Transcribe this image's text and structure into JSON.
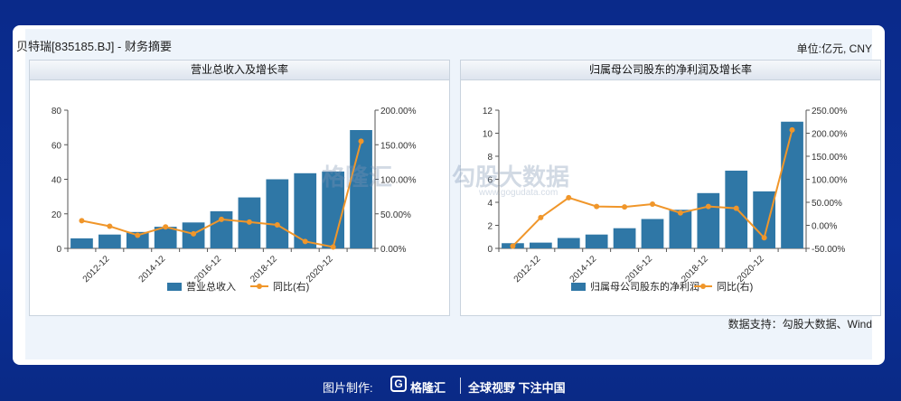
{
  "header": {
    "company": "贝特瑞[835185.BJ] - 财务摘要",
    "unit": "单位:亿元, CNY",
    "source": "数据支持：勾股大数据、Wind"
  },
  "watermark": {
    "left_text": "格隆汇",
    "right_text": "勾股大数据",
    "url": "www.gogudata.com"
  },
  "footer": {
    "label": "图片制作:",
    "logo_char": "G",
    "brand": "格隆汇",
    "slogan": "全球视野 下注中国"
  },
  "colors": {
    "bar": "#2f77a6",
    "line": "#f0962a",
    "background": "#0b2f98"
  },
  "chart_data": [
    {
      "type": "bar",
      "title": "营业总收入及增长率",
      "x_tick_labels": [
        "2012-12",
        "2014-12",
        "2016-12",
        "2018-12",
        "2020-12"
      ],
      "x_tick_positions": [
        1,
        3,
        5,
        7,
        9
      ],
      "series": [
        {
          "name": "营业总收入",
          "type": "bar",
          "axis": "left",
          "values": [
            5.8,
            8.0,
            9.5,
            12.5,
            15.0,
            21.5,
            29.5,
            40.0,
            43.5,
            44.5,
            68.5
          ]
        },
        {
          "name": "同比(右)",
          "type": "line",
          "axis": "right",
          "values": [
            40,
            32,
            19,
            31,
            21,
            42,
            38,
            34,
            10,
            2,
            155
          ]
        }
      ],
      "left_axis": {
        "ticks": [
          0,
          20,
          40,
          60,
          80
        ],
        "range": [
          0,
          80
        ]
      },
      "right_axis": {
        "ticks": [
          "0.00%",
          "50.00%",
          "100.00%",
          "150.00%",
          "200.00%"
        ],
        "range": [
          0,
          200
        ]
      },
      "legend": [
        "营业总收入",
        "同比(右)"
      ]
    },
    {
      "type": "bar",
      "title": "归属母公司股东的净利润及增长率",
      "x_tick_labels": [
        "2012-12",
        "2014-12",
        "2016-12",
        "2018-12",
        "2020-12"
      ],
      "x_tick_positions": [
        1,
        3,
        5,
        7,
        9
      ],
      "series": [
        {
          "name": "归属母公司股东的净利润",
          "type": "bar",
          "axis": "left",
          "values": [
            0.45,
            0.5,
            0.9,
            1.2,
            1.75,
            2.55,
            3.35,
            4.8,
            6.75,
            4.95,
            11.0
          ]
        },
        {
          "name": "同比(右)",
          "type": "line",
          "axis": "right",
          "values": [
            -45,
            17,
            60,
            41,
            40,
            46,
            27,
            41,
            37,
            -27,
            207
          ]
        }
      ],
      "left_axis": {
        "ticks": [
          0,
          2,
          4,
          6,
          8,
          10,
          12
        ],
        "range": [
          0,
          12
        ]
      },
      "right_axis": {
        "ticks": [
          "-50.00%",
          "0.00%",
          "50.00%",
          "100.00%",
          "150.00%",
          "200.00%",
          "250.00%"
        ],
        "range": [
          -50,
          250
        ]
      },
      "legend": [
        "归属母公司股东的净利润",
        "同比(右)"
      ]
    }
  ]
}
